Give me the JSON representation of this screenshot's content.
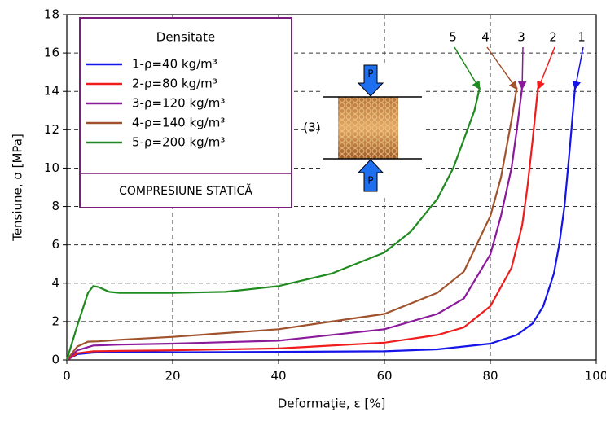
{
  "chart_data": {
    "type": "line",
    "xlabel": "Deformaţie, ε [%]",
    "ylabel": "Tensiune, σ [MPa]",
    "xlim": [
      0,
      100
    ],
    "ylim": [
      0,
      18
    ],
    "xticks": [
      0,
      20,
      40,
      60,
      80,
      100
    ],
    "yticks": [
      0,
      2,
      4,
      6,
      8,
      10,
      12,
      14,
      16,
      18
    ],
    "grid": true,
    "legend": "upper left",
    "legend_title": "Densitate",
    "legend_note": "COMPRESIUNE STATICĂ",
    "inset_label": "(3)",
    "load_label": "P",
    "series": [
      {
        "name": "1-ρ=40 kg/m³",
        "label": "1",
        "color": "#1515e8",
        "x": [
          0,
          2,
          5,
          10,
          20,
          40,
          60,
          70,
          80,
          85,
          88,
          90,
          92,
          93,
          94,
          95,
          96
        ],
        "values": [
          0,
          0.3,
          0.38,
          0.4,
          0.4,
          0.42,
          0.45,
          0.55,
          0.85,
          1.3,
          1.9,
          2.8,
          4.5,
          6,
          8,
          11,
          14.2
        ]
      },
      {
        "name": "2-ρ=80 kg/m³",
        "label": "2",
        "color": "#f01c1c",
        "x": [
          0,
          2,
          5,
          10,
          20,
          40,
          60,
          70,
          75,
          80,
          84,
          86,
          87,
          88,
          89
        ],
        "values": [
          0,
          0.35,
          0.45,
          0.47,
          0.5,
          0.6,
          0.9,
          1.3,
          1.7,
          2.8,
          4.8,
          7,
          9,
          11.5,
          14.2
        ]
      },
      {
        "name": "3-ρ=120 kg/m³",
        "label": "3",
        "color": "#8b1a9b",
        "x": [
          0,
          2,
          5,
          10,
          20,
          40,
          60,
          70,
          75,
          80,
          82,
          84,
          85,
          86
        ],
        "values": [
          0,
          0.5,
          0.75,
          0.8,
          0.85,
          1.0,
          1.6,
          2.4,
          3.2,
          5.5,
          7.5,
          10,
          12,
          14.2
        ]
      },
      {
        "name": "4-ρ=140 kg/m³",
        "label": "4",
        "color": "#a0522d",
        "x": [
          0,
          2,
          4,
          6,
          10,
          20,
          40,
          60,
          70,
          75,
          80,
          82,
          84,
          85
        ],
        "values": [
          0,
          0.7,
          0.95,
          0.97,
          1.05,
          1.2,
          1.6,
          2.4,
          3.5,
          4.6,
          7.5,
          9.5,
          12.5,
          14.2
        ]
      },
      {
        "name": "5-ρ=200 kg/m³",
        "label": "5",
        "color": "#1f8a1f",
        "x": [
          0,
          2,
          4,
          5,
          6,
          8,
          10,
          20,
          30,
          40,
          50,
          60,
          65,
          70,
          73,
          75,
          77,
          78
        ],
        "values": [
          0,
          1.8,
          3.5,
          3.85,
          3.8,
          3.55,
          3.5,
          3.5,
          3.55,
          3.85,
          4.5,
          5.6,
          6.7,
          8.4,
          10,
          11.5,
          13,
          14.2
        ]
      }
    ]
  }
}
